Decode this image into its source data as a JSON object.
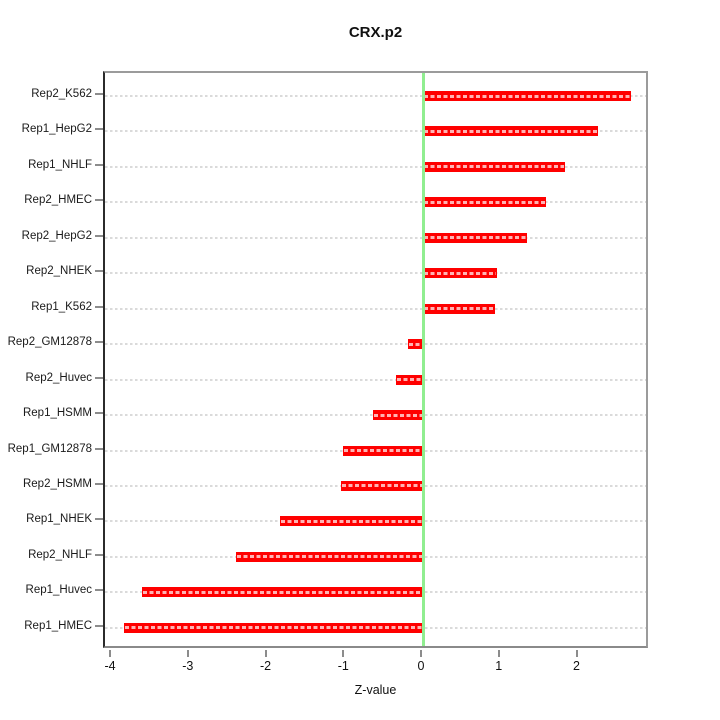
{
  "title": "CRX.p2",
  "chart_data": {
    "type": "bar",
    "orientation": "horizontal",
    "title": "CRX.p2",
    "xlabel": "Z-value",
    "ylabel": "",
    "categories": [
      "Rep2_K562",
      "Rep1_HepG2",
      "Rep1_NHLF",
      "Rep2_HMEC",
      "Rep2_HepG2",
      "Rep2_NHEK",
      "Rep1_K562",
      "Rep2_GM12878",
      "Rep2_Huvec",
      "Rep1_HSMM",
      "Rep1_GM12878",
      "Rep2_HSMM",
      "Rep1_NHEK",
      "Rep2_NHLF",
      "Rep1_Huvec",
      "Rep1_HMEC"
    ],
    "values": [
      2.67,
      2.25,
      1.82,
      1.58,
      1.34,
      0.95,
      0.92,
      -0.19,
      -0.35,
      -0.64,
      -1.03,
      -1.05,
      -1.84,
      -2.4,
      -3.62,
      -3.84
    ],
    "xlim": [
      -4.09,
      2.92
    ],
    "x_ticks": [
      -4,
      -3,
      -2,
      -1,
      0,
      1,
      2
    ],
    "x_tick_labels": [
      "-4",
      "-3",
      "-2",
      "-1",
      "0",
      "1",
      "2"
    ],
    "grid": "dotted horizontal line per category, full plot width",
    "legend": "none",
    "zero_reference_line": 0
  },
  "colors": {
    "bar": "#ff0000",
    "bar_hatch": "rgba(255,255,255,0.7)",
    "zero_line": "#90ee90",
    "gridline": "#dadada",
    "box_border": "#9b9b9b",
    "y_axis_line": "#2b2b2b",
    "tick": "#8c8c8c",
    "text": "#111111",
    "background": "#ffffff"
  }
}
